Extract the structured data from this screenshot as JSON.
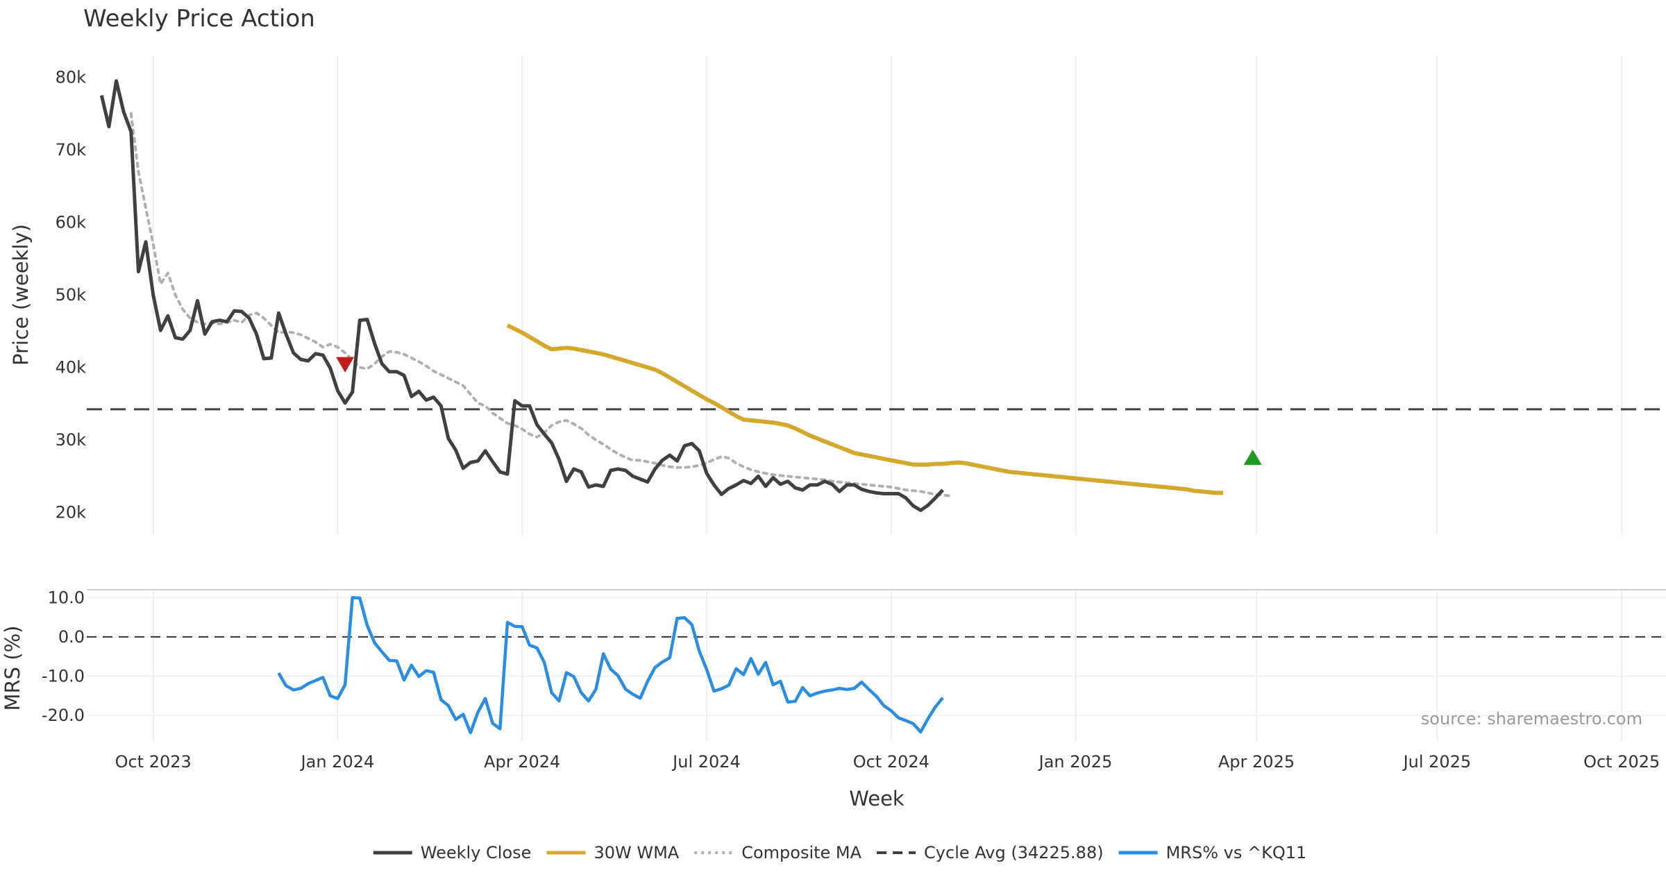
{
  "chart_data": {
    "type": "line",
    "title": "Weekly Price Action",
    "xlabel": "Week",
    "x_ticks": [
      "Oct 2023",
      "Jan 2024",
      "Apr 2024",
      "Jul 2024",
      "Oct 2024",
      "Jan 2025",
      "Apr 2025",
      "Jul 2025",
      "Oct 2025"
    ],
    "x_tick_weeks": [
      7,
      32,
      57,
      82,
      107,
      132,
      156.5,
      181,
      206
    ],
    "x_range_weeks": [
      -2,
      212
    ],
    "source": "source: sharemaestro.com",
    "price_panel": {
      "ylabel": "Price (weekly)",
      "y_ticks": [
        20000,
        30000,
        40000,
        50000,
        60000,
        70000,
        80000
      ],
      "y_tick_labels": [
        "20k",
        "30k",
        "40k",
        "50k",
        "60k",
        "70k",
        "80k"
      ],
      "ylim": [
        17000,
        83000
      ],
      "cycle_avg": 34225.88,
      "series": [
        {
          "name": "Weekly Close",
          "color": "#404040",
          "start_week": 0,
          "values": [
            77500,
            73200,
            79500,
            75200,
            72500,
            53200,
            57300,
            50000,
            45100,
            47100,
            44100,
            43900,
            45100,
            49200,
            44600,
            46300,
            46500,
            46300,
            47800,
            47700,
            46800,
            44600,
            41200,
            41300,
            47500,
            44600,
            42000,
            41100,
            40900,
            41900,
            41700,
            39900,
            36800,
            35100,
            36600,
            46500,
            46600,
            43300,
            40500,
            39400,
            39400,
            38900,
            36000,
            36700,
            35500,
            35900,
            34700,
            30200,
            28600,
            26100,
            26900,
            27100,
            28500,
            27000,
            25600,
            25300,
            35400,
            34700,
            34700,
            32100,
            30800,
            29600,
            27300,
            24300,
            26000,
            25600,
            23500,
            23800,
            23600,
            25800,
            26000,
            25800,
            25000,
            24600,
            24200,
            26000,
            27200,
            27900,
            27100,
            29200,
            29500,
            28500,
            25400,
            23800,
            22500,
            23300,
            23800,
            24400,
            24000,
            25000,
            23600,
            24800,
            23900,
            24300,
            23400,
            23100,
            23800,
            23800,
            24300,
            23900,
            22900,
            23800,
            23800,
            23200,
            22900,
            22700,
            22600,
            22600,
            22600,
            22000,
            20900,
            20300,
            21000,
            22000,
            23100
          ]
        },
        {
          "name": "30W WMA",
          "color": "#d4a82b",
          "start_week": 55,
          "values": [
            45800,
            45300,
            44800,
            44200,
            43600,
            43000,
            42500,
            42600,
            42700,
            42600,
            42400,
            42200,
            42000,
            41800,
            41500,
            41200,
            40900,
            40600,
            40300,
            40000,
            39700,
            39200,
            38600,
            38000,
            37400,
            36800,
            36200,
            35600,
            35100,
            34500,
            33900,
            33300,
            32800,
            32700,
            32600,
            32500,
            32400,
            32200,
            32000,
            31600,
            31100,
            30600,
            30200,
            29800,
            29400,
            29000,
            28600,
            28200,
            28000,
            27800,
            27600,
            27400,
            27200,
            27000,
            26800,
            26600,
            26600,
            26600,
            26700,
            26700,
            26800,
            26900,
            26800,
            26600,
            26400,
            26200,
            26000,
            25800,
            25600,
            25500,
            25400,
            25300,
            25200,
            25100,
            25000,
            24900,
            24800,
            24700,
            24600,
            24500,
            24400,
            24300,
            24200,
            24100,
            24000,
            23900,
            23800,
            23700,
            23600,
            23500,
            23400,
            23300,
            23200,
            23000,
            22900,
            22800,
            22700,
            22700
          ]
        },
        {
          "name": "Composite MA",
          "color": "#b0b0b0",
          "start_week": 4,
          "values": [
            75000,
            67000,
            62000,
            57000,
            51500,
            53000,
            50000,
            48000,
            46800,
            46200,
            46000,
            46100,
            46000,
            46200,
            46500,
            46200,
            47200,
            47500,
            46800,
            45800,
            44800,
            44900,
            44800,
            44500,
            44000,
            43500,
            42800,
            43200,
            42800,
            42000,
            41000,
            40000,
            39800,
            40500,
            41500,
            42200,
            42100,
            41800,
            41300,
            40800,
            40200,
            39500,
            39000,
            38500,
            38000,
            37500,
            36300,
            35100,
            34700,
            33700,
            33000,
            32300,
            32000,
            31500,
            30800,
            30400,
            31000,
            32000,
            32500,
            32700,
            32200,
            31600,
            30700,
            30000,
            29400,
            28700,
            28100,
            27600,
            27200,
            27200,
            27000,
            26800,
            26500,
            26300,
            26200,
            26200,
            26300,
            26500,
            26800,
            27300,
            27700,
            27500,
            26800,
            26300,
            25900,
            25600,
            25400,
            25200,
            25100,
            25000,
            24900,
            24800,
            24700,
            24600,
            24500,
            24300,
            24200,
            24100,
            24000,
            23900,
            23800,
            23700,
            23600,
            23500,
            23300,
            23100,
            23000,
            22900,
            22700,
            22500,
            22400,
            22300
          ]
        },
        {
          "name": "Cycle Avg (34225.88)",
          "color": "#404040"
        }
      ],
      "markers": [
        {
          "name": "sell-signal",
          "week": 33,
          "value": 40500,
          "color": "#c01c1c",
          "shape": "triangle-down"
        },
        {
          "name": "buy-signal",
          "week": 156,
          "value": 27500,
          "color": "#1f9b24",
          "shape": "triangle-up"
        }
      ]
    },
    "mrs_panel": {
      "ylabel": "MRS (%)",
      "y_ticks": [
        10,
        0,
        -10,
        -20
      ],
      "y_tick_labels": [
        "10.0",
        "0.0",
        "-10.0",
        "-20.0"
      ],
      "ylim": [
        -26.5,
        12
      ],
      "zero_line": 0,
      "series": [
        {
          "name": "MRS% vs ^KQ11",
          "color": "#2b8de0",
          "start_week": 24,
          "values": [
            -9.2,
            -12.4,
            -13.5,
            -13.1,
            -11.9,
            -11.1,
            -10.3,
            -15.0,
            -15.7,
            -12.2,
            10.0,
            9.9,
            2.9,
            -1.5,
            -3.8,
            -6.0,
            -6.1,
            -11.0,
            -7.2,
            -10.1,
            -8.6,
            -9.0,
            -16.0,
            -17.5,
            -21.0,
            -19.7,
            -24.4,
            -19.2,
            -15.7,
            -22.0,
            -23.4,
            3.7,
            2.7,
            2.6,
            -2.1,
            -2.8,
            -6.5,
            -14.2,
            -16.3,
            -9.1,
            -10.1,
            -14.2,
            -16.3,
            -13.3,
            -4.3,
            -8.2,
            -9.9,
            -13.3,
            -14.6,
            -15.6,
            -11.3,
            -7.8,
            -6.4,
            -5.3,
            4.7,
            4.9,
            3.1,
            -3.6,
            -8.3,
            -13.8,
            -13.2,
            -12.3,
            -8.1,
            -9.6,
            -5.5,
            -9.5,
            -6.5,
            -12.2,
            -11.3,
            -16.6,
            -16.4,
            -12.9,
            -15.0,
            -14.3,
            -13.8,
            -13.5,
            -13.1,
            -13.4,
            -13.1,
            -11.5,
            -13.4,
            -15.1,
            -17.5,
            -18.8,
            -20.6,
            -21.3,
            -22.1,
            -24.2,
            -20.8,
            -17.8,
            -15.5
          ]
        }
      ]
    },
    "legend": {
      "placement": "bottom-center",
      "entries": [
        {
          "label": "Weekly Close",
          "color": "#404040",
          "style": "solid"
        },
        {
          "label": "30W WMA",
          "color": "#d4a82b",
          "style": "solid"
        },
        {
          "label": "Composite MA",
          "color": "#b0b0b0",
          "style": "dotted"
        },
        {
          "label": "Cycle Avg (34225.88)",
          "color": "#404040",
          "style": "dashed"
        },
        {
          "label": "MRS% vs ^KQ11",
          "color": "#2b8de0",
          "style": "solid"
        }
      ]
    }
  }
}
